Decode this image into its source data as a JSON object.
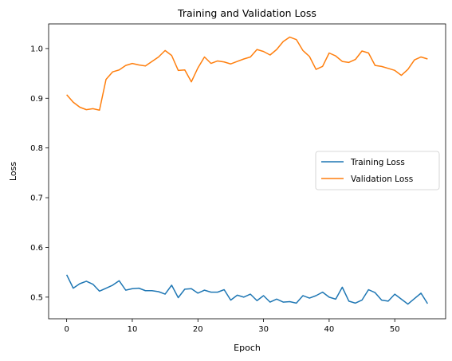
{
  "chart_data": {
    "type": "line",
    "title": "Training and Validation Loss",
    "xlabel": "Epoch",
    "ylabel": "Loss",
    "xlim": [
      -2.75,
      57.75
    ],
    "ylim": [
      0.4565,
      1.0495
    ],
    "xticks": [
      0,
      10,
      20,
      30,
      40,
      50
    ],
    "yticks": [
      0.5,
      0.6,
      0.7,
      0.8,
      0.9,
      1.0
    ],
    "xtick_labels": [
      "0",
      "10",
      "20",
      "30",
      "40",
      "50"
    ],
    "ytick_labels": [
      "0.5",
      "0.6",
      "0.7",
      "0.8",
      "0.9",
      "1.0"
    ],
    "grid": false,
    "legend_position": "center-right",
    "x": [
      0,
      1,
      2,
      3,
      4,
      5,
      6,
      7,
      8,
      9,
      10,
      11,
      12,
      13,
      14,
      15,
      16,
      17,
      18,
      19,
      20,
      21,
      22,
      23,
      24,
      25,
      26,
      27,
      28,
      29,
      30,
      31,
      32,
      33,
      34,
      35,
      36,
      37,
      38,
      39,
      40,
      41,
      42,
      43,
      44,
      45,
      46,
      47,
      48,
      49,
      50,
      51,
      52,
      53,
      54,
      55
    ],
    "series": [
      {
        "name": "Training Loss",
        "color": "#1f77b4",
        "values": [
          0.545,
          0.518,
          0.527,
          0.532,
          0.526,
          0.512,
          0.518,
          0.524,
          0.533,
          0.514,
          0.517,
          0.518,
          0.513,
          0.513,
          0.511,
          0.506,
          0.524,
          0.499,
          0.516,
          0.517,
          0.508,
          0.514,
          0.51,
          0.51,
          0.515,
          0.494,
          0.504,
          0.5,
          0.506,
          0.493,
          0.503,
          0.49,
          0.496,
          0.49,
          0.491,
          0.488,
          0.503,
          0.498,
          0.503,
          0.51,
          0.5,
          0.496,
          0.52,
          0.492,
          0.488,
          0.494,
          0.515,
          0.509,
          0.494,
          0.492,
          0.506,
          0.496,
          0.486,
          0.497,
          0.508,
          0.487
        ]
      },
      {
        "name": "Validation Loss",
        "color": "#ff7f0e",
        "values": [
          0.907,
          0.892,
          0.882,
          0.877,
          0.879,
          0.876,
          0.938,
          0.953,
          0.957,
          0.966,
          0.97,
          0.967,
          0.965,
          0.974,
          0.983,
          0.996,
          0.986,
          0.956,
          0.957,
          0.933,
          0.961,
          0.983,
          0.97,
          0.975,
          0.973,
          0.969,
          0.974,
          0.979,
          0.983,
          0.998,
          0.994,
          0.987,
          0.998,
          1.014,
          1.023,
          1.018,
          0.996,
          0.984,
          0.958,
          0.964,
          0.991,
          0.985,
          0.974,
          0.972,
          0.978,
          0.995,
          0.991,
          0.966,
          0.964,
          0.96,
          0.956,
          0.946,
          0.958,
          0.977,
          0.983,
          0.979
        ]
      }
    ]
  }
}
